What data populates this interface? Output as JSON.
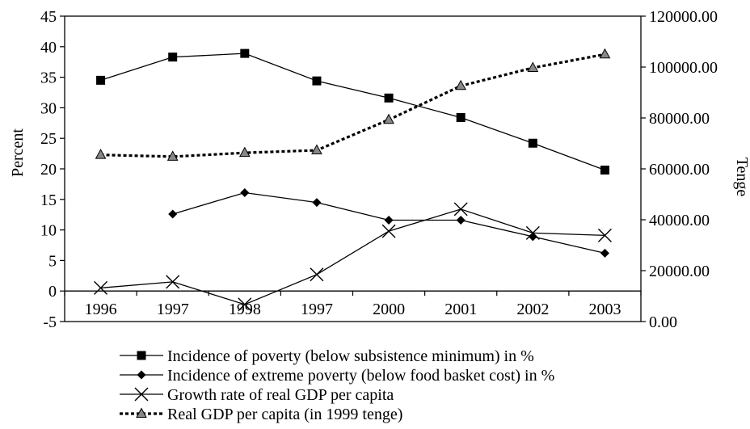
{
  "chart_data": {
    "type": "line",
    "categories": [
      "1996",
      "1997",
      "1998",
      "1997",
      "2000",
      "2001",
      "2002",
      "2003"
    ],
    "ylabel": "Percent",
    "y2label": "Tenge",
    "ylim": [
      -5,
      45
    ],
    "y2lim": [
      0,
      120000
    ],
    "yticks": [
      "45",
      "40",
      "35",
      "30",
      "25",
      "20",
      "15",
      "10",
      "5",
      "0",
      "-5"
    ],
    "y2ticks": [
      "120000.00",
      "100000.00",
      "80000.00",
      "60000.00",
      "40000.00",
      "20000.00",
      "0.00"
    ],
    "legend_position": "bottom",
    "series": [
      {
        "name": "Incidence of poverty (below subsistence minimum) in %",
        "axis": "left",
        "marker": "square",
        "line": "solid",
        "values": [
          34.5,
          38.3,
          38.9,
          34.4,
          31.6,
          28.4,
          24.2,
          19.8
        ]
      },
      {
        "name": "Incidence of extreme poverty (below food basket cost) in %",
        "axis": "left",
        "marker": "diamond",
        "line": "solid",
        "values": [
          null,
          12.6,
          16.1,
          14.5,
          11.6,
          11.6,
          8.9,
          6.2
        ]
      },
      {
        "name": "Growth rate of real GDP per capita",
        "axis": "left",
        "marker": "x",
        "line": "solid",
        "values": [
          0.5,
          1.5,
          -2.2,
          2.7,
          9.8,
          13.4,
          9.5,
          9.1
        ]
      },
      {
        "name": "Real GDP per capita (in 1999 tenge)",
        "axis": "right",
        "marker": "triangle",
        "line": "dotted",
        "values": [
          65500,
          64800,
          66300,
          67300,
          79300,
          92600,
          99700,
          105000
        ]
      }
    ]
  }
}
